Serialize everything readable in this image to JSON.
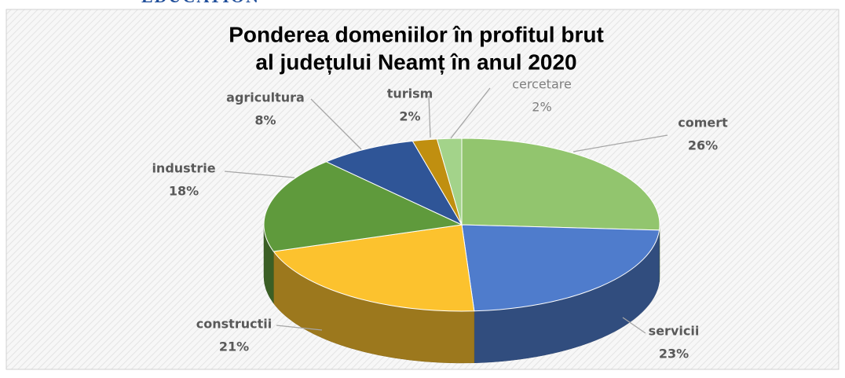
{
  "header_text": "EDUCATION",
  "chart_data": {
    "type": "pie",
    "title": [
      "Ponderea domeniilor în profitul brut",
      "al județului Neamț în anul 2020"
    ],
    "categories": [
      "comert",
      "servicii",
      "constructii",
      "industrie",
      "agricultura",
      "turism",
      "cercetare"
    ],
    "values": [
      26,
      23,
      21,
      18,
      8,
      2,
      2
    ],
    "value_labels": [
      "26%",
      "23%",
      "21%",
      "18%",
      "8%",
      "2%",
      "2%"
    ],
    "colors": [
      "#92c56e",
      "#4f7ccc",
      "#fcc22e",
      "#5f9a3c",
      "#2f5597",
      "#c08f10",
      "#a3d38a"
    ]
  }
}
